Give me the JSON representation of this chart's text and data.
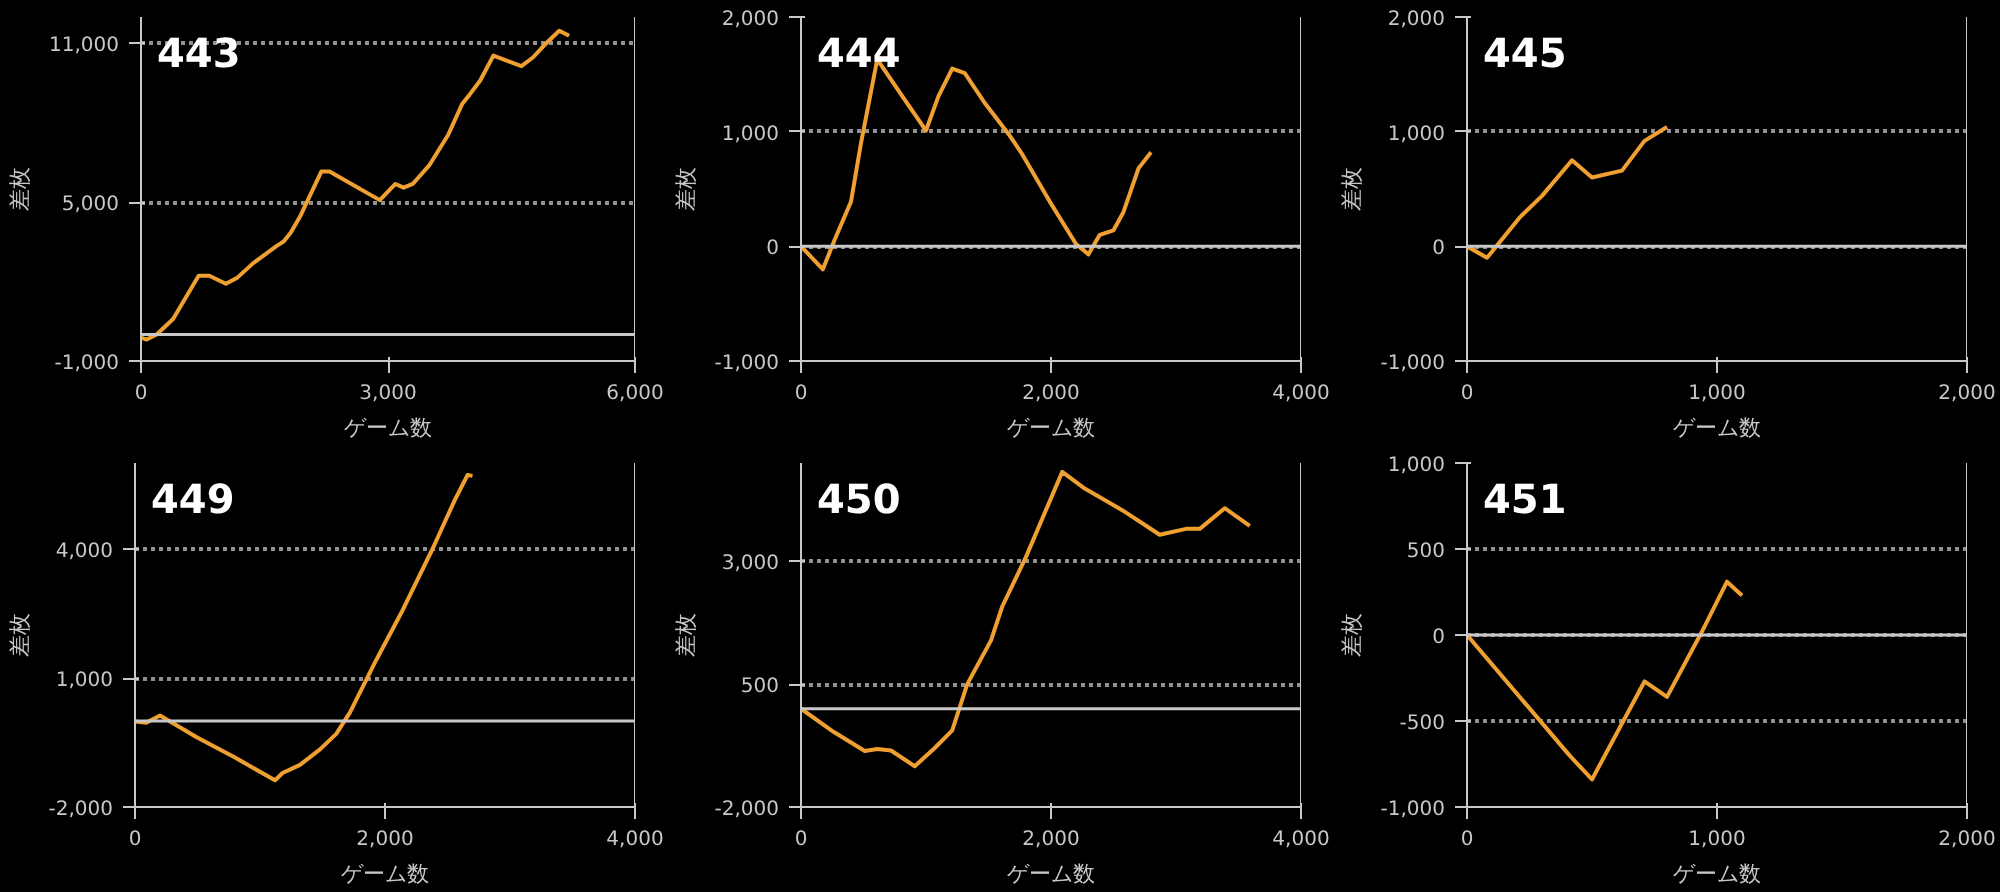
{
  "chart_data": [
    {
      "type": "line",
      "title": "443",
      "xlabel": "ゲーム数",
      "ylabel": "差枚",
      "xlim": [
        0,
        6000
      ],
      "xticks": [
        0,
        {
          "value": 3000,
          "label": "3,000"
        },
        {
          "value": 6000,
          "label": "6,000"
        }
      ],
      "ylim": [
        -1000,
        12000
      ],
      "yticks": [
        {
          "value": -1000,
          "label": "-1,000"
        },
        {
          "value": 5000,
          "label": "5,000"
        },
        {
          "value": 11000,
          "label": "11,000"
        }
      ],
      "grid": "y",
      "ref_lines": [
        {
          "axis": "y",
          "value": 0,
          "color": "#c8c8c8"
        }
      ],
      "series": [
        {
          "color": "#f0a030",
          "x": [
            0,
            70,
            190,
            390,
            700,
            830,
            1030,
            1170,
            1360,
            1640,
            1730,
            1820,
            1930,
            2190,
            2290,
            2900,
            3090,
            3190,
            3300,
            3500,
            3730,
            3900,
            3980,
            4120,
            4280,
            4620,
            4760,
            4900,
            5080,
            5200
          ],
          "values": [
            -120,
            -190,
            0,
            590,
            2220,
            2220,
            1920,
            2150,
            2690,
            3330,
            3510,
            3860,
            4450,
            6160,
            6160,
            5080,
            5690,
            5550,
            5690,
            6390,
            7540,
            8710,
            9020,
            9600,
            10540,
            10140,
            10470,
            10940,
            11480,
            11290
          ]
        }
      ]
    },
    {
      "type": "line",
      "title": "444",
      "xlabel": "ゲーム数",
      "ylabel": "差枚",
      "xlim": [
        0,
        4000
      ],
      "xticks": [
        0,
        {
          "value": 2000,
          "label": "2,000"
        },
        {
          "value": 4000,
          "label": "4,000"
        }
      ],
      "ylim": [
        -1000,
        2000
      ],
      "yticks": [
        {
          "value": -1000,
          "label": "-1,000"
        },
        0,
        {
          "value": 1000,
          "label": "1,000"
        },
        {
          "value": 2000,
          "label": "2,000"
        }
      ],
      "grid": "y",
      "ref_lines": [
        {
          "axis": "y",
          "value": 0,
          "color": "#c8c8c8"
        }
      ],
      "series": [
        {
          "color": "#f0a030",
          "x": [
            0,
            175,
            270,
            400,
            480,
            610,
            810,
            1000,
            1100,
            1210,
            1310,
            1470,
            1660,
            1760,
            1990,
            2200,
            2300,
            2390,
            2500,
            2580,
            2700,
            2800
          ],
          "values": [
            0,
            -200,
            60,
            390,
            900,
            1630,
            1310,
            1010,
            1310,
            1550,
            1510,
            1250,
            980,
            820,
            390,
            20,
            -70,
            100,
            140,
            300,
            680,
            820
          ]
        }
      ]
    },
    {
      "type": "line",
      "title": "445",
      "xlabel": "ゲーム数",
      "ylabel": "差枚",
      "xlim": [
        0,
        2000
      ],
      "xticks": [
        0,
        {
          "value": 1000,
          "label": "1,000"
        },
        {
          "value": 2000,
          "label": "2,000"
        }
      ],
      "ylim": [
        -1000,
        2000
      ],
      "yticks": [
        {
          "value": -1000,
          "label": "-1,000"
        },
        0,
        {
          "value": 1000,
          "label": "1,000"
        },
        {
          "value": 2000,
          "label": "2,000"
        }
      ],
      "grid": "y",
      "ref_lines": [
        {
          "axis": "y",
          "value": 0,
          "color": "#c8c8c8"
        }
      ],
      "series": [
        {
          "color": "#f0a030",
          "x": [
            0,
            80,
            210,
            300,
            420,
            500,
            620,
            710,
            800
          ],
          "values": [
            0,
            -100,
            250,
            440,
            750,
            600,
            660,
            920,
            1040
          ]
        }
      ]
    },
    {
      "type": "line",
      "title": "449",
      "xlabel": "ゲーム数",
      "ylabel": "差枚",
      "xlim": [
        0,
        4000
      ],
      "xticks": [
        0,
        {
          "value": 2000,
          "label": "2,000"
        },
        {
          "value": 4000,
          "label": "4,000"
        }
      ],
      "ylim": [
        -2000,
        6000
      ],
      "yticks": [
        {
          "value": -2000,
          "label": "-2,000"
        },
        {
          "value": 1000,
          "label": "1,000"
        },
        {
          "value": 4000,
          "label": "4,000"
        }
      ],
      "grid": "y",
      "ref_lines": [
        {
          "axis": "y",
          "value": 0,
          "color": "#c8c8c8"
        }
      ],
      "series": [
        {
          "color": "#f0a030",
          "x": [
            0,
            90,
            200,
            490,
            800,
            1120,
            1180,
            1320,
            1480,
            1610,
            1720,
            1930,
            2140,
            2380,
            2560,
            2660,
            2700
          ],
          "values": [
            -10,
            -40,
            130,
            -370,
            -850,
            -1380,
            -1210,
            -1020,
            -660,
            -300,
            200,
            1420,
            2570,
            4000,
            5150,
            5720,
            5700
          ]
        }
      ]
    },
    {
      "type": "line",
      "title": "450",
      "xlabel": "ゲーム数",
      "ylabel": "差枚",
      "xlim": [
        0,
        4000
      ],
      "xticks": [
        0,
        {
          "value": 2000,
          "label": "2,000"
        },
        {
          "value": 4000,
          "label": "4,000"
        }
      ],
      "ylim": [
        -2000,
        5000
      ],
      "yticks": [
        {
          "value": -2000,
          "label": "-2,000"
        },
        500,
        {
          "value": 3000,
          "label": "3,000"
        }
      ],
      "grid": "y",
      "ref_lines": [
        {
          "axis": "y",
          "value": 0,
          "color": "#c8c8c8"
        }
      ],
      "series": [
        {
          "color": "#f0a030",
          "x": [
            0,
            260,
            510,
            610,
            720,
            910,
            1070,
            1210,
            1330,
            1520,
            1610,
            1800,
            2090,
            2270,
            2570,
            2870,
            3080,
            3190,
            3390,
            3590
          ],
          "values": [
            0,
            -470,
            -860,
            -820,
            -850,
            -1170,
            -800,
            -440,
            500,
            1390,
            2080,
            3090,
            4820,
            4480,
            4040,
            3540,
            3660,
            3660,
            4080,
            3720
          ]
        }
      ]
    },
    {
      "type": "line",
      "title": "451",
      "xlabel": "ゲーム数",
      "ylabel": "差枚",
      "xlim": [
        0,
        2000
      ],
      "xticks": [
        0,
        {
          "value": 1000,
          "label": "1,000"
        },
        {
          "value": 2000,
          "label": "2,000"
        }
      ],
      "ylim": [
        -1000,
        1000
      ],
      "yticks": [
        {
          "value": -1000,
          "label": "-1,000"
        },
        -500,
        0,
        500,
        {
          "value": 1000,
          "label": "1,000"
        }
      ],
      "grid": "y",
      "ref_lines": [
        {
          "axis": "y",
          "value": 0,
          "color": "#c8c8c8"
        }
      ],
      "series": [
        {
          "color": "#f0a030",
          "x": [
            0,
            410,
            500,
            710,
            800,
            940,
            1040,
            1100
          ],
          "values": [
            0,
            -700,
            -840,
            -270,
            -360,
            20,
            310,
            230
          ]
        }
      ]
    }
  ]
}
